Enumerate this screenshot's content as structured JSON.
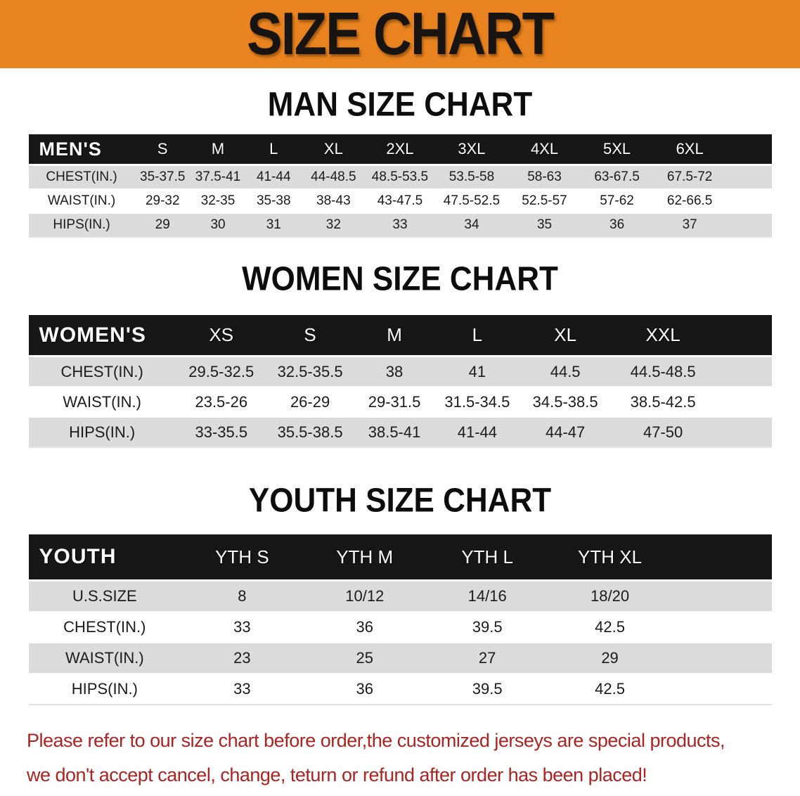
{
  "banner": {
    "title": "SIZE CHART"
  },
  "colors": {
    "banner_bg": "#E8831F",
    "banner_text": "#181411",
    "table_header_bg": "#171717",
    "table_header_text": "#FFFFFF",
    "row_stripe": "#DBDBDB",
    "disclaimer_text": "#AB2421"
  },
  "sections": [
    {
      "heading": "MAN SIZE CHART",
      "table": {
        "label": "MEN'S",
        "columns": [
          "S",
          "M",
          "L",
          "XL",
          "2XL",
          "3XL",
          "4XL",
          "5XL",
          "6XL"
        ],
        "rows": [
          {
            "label": "CHEST(IN.)",
            "values": [
              "35-37.5",
              "37.5-41",
              "41-44",
              "44-48.5",
              "48.5-53.5",
              "53.5-58",
              "58-63",
              "63-67.5",
              "67.5-72"
            ]
          },
          {
            "label": "WAIST(IN.)",
            "values": [
              "29-32",
              "32-35",
              "35-38",
              "38-43",
              "43-47.5",
              "47.5-52.5",
              "52.5-57",
              "57-62",
              "62-66.5"
            ]
          },
          {
            "label": "HIPS(IN.)",
            "values": [
              "29",
              "30",
              "31",
              "32",
              "33",
              "34",
              "35",
              "36",
              "37"
            ]
          }
        ]
      }
    },
    {
      "heading": "WOMEN SIZE CHART",
      "table": {
        "label": "WOMEN'S",
        "columns": [
          "XS",
          "S",
          "M",
          "L",
          "XL",
          "XXL"
        ],
        "rows": [
          {
            "label": "CHEST(IN.)",
            "values": [
              "29.5-32.5",
              "32.5-35.5",
              "38",
              "41",
              "44.5",
              "44.5-48.5"
            ]
          },
          {
            "label": "WAIST(IN.)",
            "values": [
              "23.5-26",
              "26-29",
              "29-31.5",
              "31.5-34.5",
              "34.5-38.5",
              "38.5-42.5"
            ]
          },
          {
            "label": "HIPS(IN.)",
            "values": [
              "33-35.5",
              "35.5-38.5",
              "38.5-41",
              "41-44",
              "44-47",
              "47-50"
            ]
          }
        ]
      }
    },
    {
      "heading": "YOUTH SIZE CHART",
      "table": {
        "label": "YOUTH",
        "columns": [
          "YTH S",
          "YTH M",
          "YTH L",
          "YTH XL"
        ],
        "rows": [
          {
            "label": "U.S.SIZE",
            "values": [
              "8",
              "10/12",
              "14/16",
              "18/20"
            ]
          },
          {
            "label": "CHEST(IN.)",
            "values": [
              "33",
              "36",
              "39.5",
              "42.5"
            ]
          },
          {
            "label": "WAIST(IN.)",
            "values": [
              "23",
              "25",
              "27",
              "29"
            ]
          },
          {
            "label": "HIPS(IN.)",
            "values": [
              "33",
              "36",
              "39.5",
              "42.5"
            ]
          }
        ]
      }
    }
  ],
  "disclaimer": {
    "line1": "Please refer to our size chart before order,the customized jerseys are special products,",
    "line2": "we don't accept cancel, change, teturn or refund after order has been placed!"
  }
}
